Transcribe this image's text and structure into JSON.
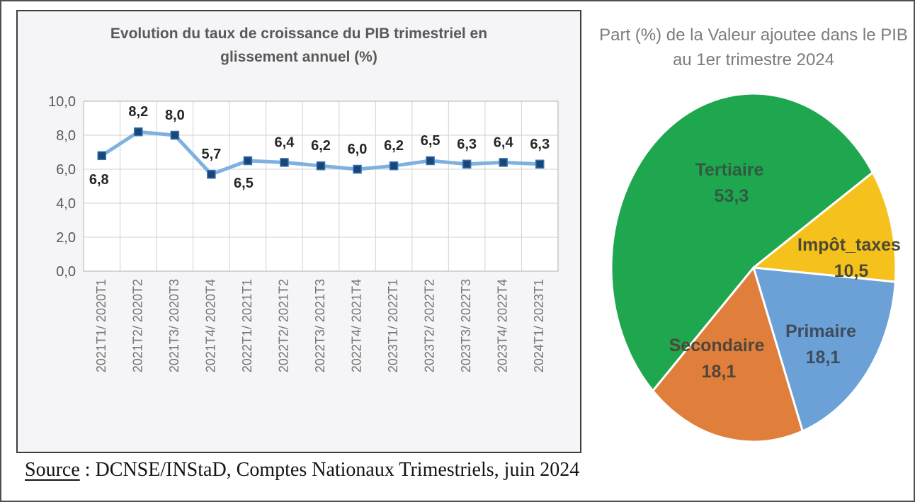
{
  "page": {
    "source": {
      "label": "Source",
      "text": " : DCNSE/INStaD, Comptes Nationaux Trimestriels, juin 2024"
    }
  },
  "chart_data": [
    {
      "type": "line",
      "title": "Evolution du taux de croissance du PIB trimestriel en glissement annuel (%)",
      "xlabel": "",
      "ylabel": "",
      "ylim": [
        0,
        10
      ],
      "ytick_values": [
        0,
        2,
        4,
        6,
        8,
        10
      ],
      "ytick_labels": [
        "0,0",
        "2,0",
        "4,0",
        "6,0",
        "8,0",
        "10,0"
      ],
      "grid": true,
      "legend_position": "none",
      "categories": [
        "2021T1/ 2020T1",
        "2021T2/ 2020T2",
        "2021T3/ 2020T3",
        "2021T4/ 2020T4",
        "2022T1/ 2021T1",
        "2022T2/ 2021T2",
        "2022T3/ 2021T3",
        "2022T4/ 2021T4",
        "2023T1/ 2022T1",
        "2023T2/ 2022T2",
        "2023T3/ 2022T3",
        "2023T4/ 2022T4",
        "2024T1/ 2023T1"
      ],
      "values": [
        6.8,
        8.2,
        8.0,
        5.7,
        6.5,
        6.4,
        6.2,
        6.0,
        6.2,
        6.5,
        6.3,
        6.4,
        6.3
      ],
      "point_labels": [
        "6,8",
        "8,2",
        "8,0",
        "5,7",
        "6,5",
        "6,4",
        "6,2",
        "6,0",
        "6,2",
        "6,5",
        "6,3",
        "6,4",
        "6,3"
      ],
      "line_color": "#7FB1E0",
      "marker_color": "#1E4476",
      "marker_edge_color": "#2E75B6",
      "gridline_color": "#d9d9d9",
      "tick_label_color": "#757575",
      "axis_label_color": "#595959",
      "data_label_color": "#262626"
    },
    {
      "type": "pie",
      "title": "Part (%) de la Valeur ajoutee dans le PIB au 1er trimestre 2024",
      "start_angle_deg": 225,
      "direction": "clockwise",
      "segments": [
        {
          "label": "Tertiaire",
          "value": 53.3,
          "value_label": "53,3",
          "color": "#1FA750",
          "label_color": "#315A41"
        },
        {
          "label": "Impôt_taxes",
          "value": 10.5,
          "value_label": "10,5",
          "color": "#F5C21D",
          "label_color": "#4E4A31"
        },
        {
          "label": "Primaire",
          "value": 18.1,
          "value_label": "18,1",
          "color": "#6BA1D6",
          "label_color": "#3F4C5C"
        },
        {
          "label": "Secondaire",
          "value": 18.1,
          "value_label": "18,1",
          "color": "#E07E3C",
          "label_color": "#51463A"
        }
      ]
    }
  ]
}
